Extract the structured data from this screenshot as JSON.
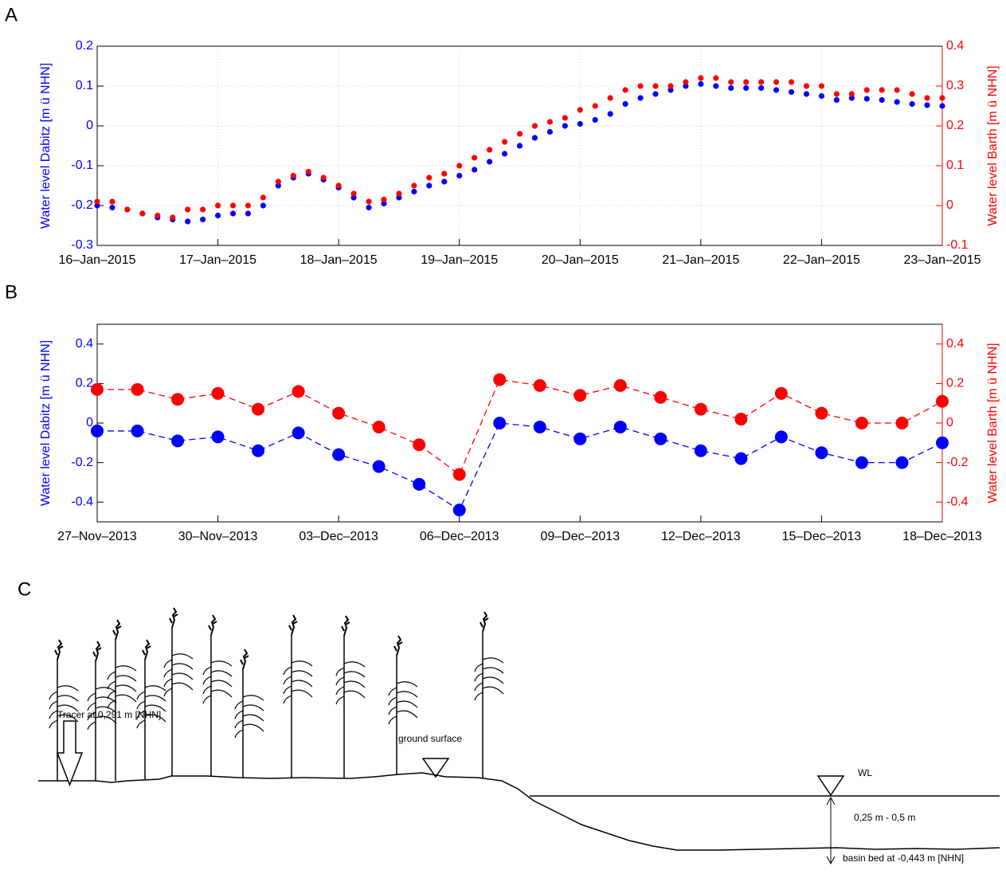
{
  "chart_data": [
    {
      "type": "scatter",
      "panel": "A",
      "x": [
        0,
        0.125,
        0.25,
        0.375,
        0.5,
        0.625,
        0.75,
        0.875,
        1,
        1.125,
        1.25,
        1.375,
        1.5,
        1.625,
        1.75,
        1.875,
        2,
        2.125,
        2.25,
        2.375,
        2.5,
        2.625,
        2.75,
        2.875,
        3,
        3.125,
        3.25,
        3.375,
        3.5,
        3.625,
        3.75,
        3.875,
        4,
        4.125,
        4.25,
        4.375,
        4.5,
        4.625,
        4.75,
        4.875,
        5,
        5.125,
        5.25,
        5.375,
        5.5,
        5.625,
        5.75,
        5.875,
        6,
        6.125,
        6.25,
        6.375,
        6.5,
        6.625,
        6.75,
        6.875,
        7
      ],
      "xlim": [
        0,
        7
      ],
      "xticks": [
        {
          "value": 0,
          "label": "16–Jan–2015"
        },
        {
          "value": 1,
          "label": "17–Jan–2015"
        },
        {
          "value": 2,
          "label": "18–Jan–2015"
        },
        {
          "value": 3,
          "label": "19–Jan–2015"
        },
        {
          "value": 4,
          "label": "20–Jan–2015"
        },
        {
          "value": 5,
          "label": "21–Jan–2015"
        },
        {
          "value": 6,
          "label": "22–Jan–2015"
        },
        {
          "value": 7,
          "label": "23–Jan–2015"
        }
      ],
      "ylabel": "Water level Dabitz [m ü NHN]",
      "ylim": [
        -0.3,
        0.2
      ],
      "yticks": [
        -0.3,
        -0.2,
        -0.1,
        0,
        0.1,
        0.2
      ],
      "y2label": "Water level Barth [m ü NHN]",
      "y2lim": [
        -0.1,
        0.4
      ],
      "y2ticks": [
        -0.1,
        0,
        0.1,
        0.2,
        0.3,
        0.4
      ],
      "grid": true,
      "series": [
        {
          "name": "Dabitz",
          "color": "#0000ff",
          "axis": "y",
          "linestyle": "none",
          "values": [
            -0.2,
            -0.205,
            -0.21,
            -0.22,
            -0.23,
            -0.235,
            -0.24,
            -0.235,
            -0.225,
            -0.22,
            -0.22,
            -0.2,
            -0.15,
            -0.13,
            -0.12,
            -0.135,
            -0.155,
            -0.18,
            -0.205,
            -0.195,
            -0.18,
            -0.165,
            -0.15,
            -0.14,
            -0.125,
            -0.11,
            -0.09,
            -0.07,
            -0.05,
            -0.03,
            -0.015,
            0,
            0.005,
            0.015,
            0.03,
            0.055,
            0.07,
            0.08,
            0.09,
            0.1,
            0.105,
            0.1,
            0.095,
            0.095,
            0.095,
            0.09,
            0.085,
            0.08,
            0.075,
            0.065,
            0.07,
            0.068,
            0.065,
            0.06,
            0.055,
            0.052,
            0.05
          ]
        },
        {
          "name": "Barth",
          "color": "#ff0000",
          "axis": "y2",
          "linestyle": "none",
          "values": [
            0.01,
            0.01,
            -0.01,
            -0.02,
            -0.025,
            -0.03,
            -0.01,
            -0.01,
            0,
            0,
            0,
            0.02,
            0.06,
            0.075,
            0.085,
            0.07,
            0.05,
            0.03,
            0.01,
            0.015,
            0.03,
            0.05,
            0.07,
            0.08,
            0.1,
            0.12,
            0.14,
            0.16,
            0.18,
            0.2,
            0.21,
            0.22,
            0.24,
            0.25,
            0.27,
            0.29,
            0.3,
            0.3,
            0.3,
            0.31,
            0.32,
            0.32,
            0.31,
            0.31,
            0.31,
            0.31,
            0.31,
            0.3,
            0.3,
            0.28,
            0.28,
            0.29,
            0.29,
            0.29,
            0.28,
            0.27,
            0.27
          ]
        }
      ]
    },
    {
      "type": "scatter",
      "panel": "B",
      "x": [
        0,
        1,
        2,
        3,
        4,
        5,
        6,
        7,
        8,
        9,
        10,
        11,
        12,
        13,
        14,
        15,
        16,
        17,
        18,
        19,
        20,
        21
      ],
      "xlim": [
        0,
        21
      ],
      "xticks": [
        {
          "value": 0,
          "label": "27–Nov–2013"
        },
        {
          "value": 3,
          "label": "30–Nov–2013"
        },
        {
          "value": 6,
          "label": "03–Dec–2013"
        },
        {
          "value": 9,
          "label": "06–Dec–2013"
        },
        {
          "value": 12,
          "label": "09–Dec–2013"
        },
        {
          "value": 15,
          "label": "12–Dec–2013"
        },
        {
          "value": 18,
          "label": "15–Dec–2013"
        },
        {
          "value": 21,
          "label": "18–Dec–2013"
        }
      ],
      "ylabel": "Water level Dabitz [m ü NHN]",
      "ylim": [
        -0.5,
        0.5
      ],
      "yticks": [
        -0.4,
        -0.2,
        0,
        0.2,
        0.4
      ],
      "y2label": "Water level Barth [m ü NHN]",
      "y2lim": [
        -0.5,
        0.5
      ],
      "y2ticks": [
        -0.4,
        -0.2,
        0,
        0.2,
        0.4
      ],
      "grid": false,
      "series": [
        {
          "name": "Dabitz",
          "color": "#0000ff",
          "axis": "y",
          "linestyle": "dashed",
          "values": [
            -0.04,
            -0.04,
            -0.09,
            -0.07,
            -0.14,
            -0.05,
            -0.16,
            -0.22,
            -0.31,
            -0.44,
            0,
            -0.02,
            -0.08,
            -0.02,
            -0.08,
            -0.14,
            -0.18,
            -0.07,
            -0.15,
            -0.2,
            -0.2,
            -0.1
          ]
        },
        {
          "name": "Barth",
          "color": "#ff0000",
          "axis": "y2",
          "linestyle": "dashed",
          "values": [
            0.17,
            0.17,
            0.12,
            0.15,
            0.07,
            0.16,
            0.05,
            -0.02,
            -0.11,
            -0.26,
            0.22,
            0.19,
            0.14,
            0.19,
            0.13,
            0.07,
            0.02,
            0.15,
            0.05,
            0,
            0,
            0.11
          ]
        }
      ]
    }
  ],
  "diagram": {
    "panel": "C",
    "labels": {
      "tracer": "Tracer at 0,291 m [NHN]",
      "ground_surface": "ground surface",
      "wl": "WL",
      "range": "0,25 m - 0,5 m",
      "basin_bed": "basin bed at -0,443 m [NHN]"
    }
  }
}
